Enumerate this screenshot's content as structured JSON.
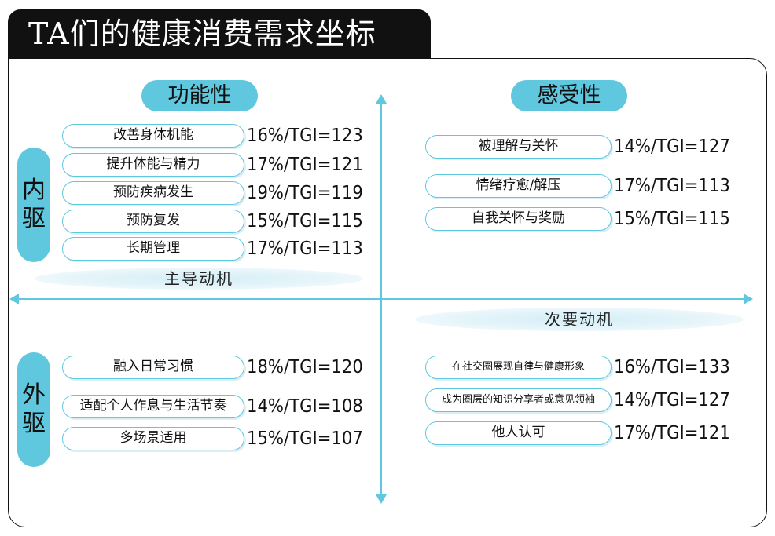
{
  "title": "TA们的健康消费需求坐标",
  "quadrants": {
    "functional": "功能性",
    "emotional": "感受性"
  },
  "side_labels": {
    "internal": [
      "内",
      "驱"
    ],
    "external": [
      "外",
      "驱"
    ]
  },
  "motives": {
    "primary": "主导动机",
    "secondary": "次要动机"
  },
  "top_left_items": [
    {
      "label": "改善身体机能",
      "stat": "16%/TGI=123"
    },
    {
      "label": "提升体能与精力",
      "stat": "17%/TGI=121"
    },
    {
      "label": "预防疾病发生",
      "stat": "19%/TGI=119"
    },
    {
      "label": "预防复发",
      "stat": "15%/TGI=115"
    },
    {
      "label": "长期管理",
      "stat": "17%/TGI=113"
    }
  ],
  "top_right_items": [
    {
      "label": "被理解与关怀",
      "stat": "14%/TGI=127"
    },
    {
      "label": "情绪疗愈/解压",
      "stat": "17%/TGI=113"
    },
    {
      "label": "自我关怀与奖励",
      "stat": "15%/TGI=115"
    }
  ],
  "bottom_left_items": [
    {
      "label": "融入日常习惯",
      "stat": "18%/TGI=120"
    },
    {
      "label": "适配个人作息与生活节奏",
      "stat": "14%/TGI=108"
    },
    {
      "label": "多场景适用",
      "stat": "15%/TGI=107"
    }
  ],
  "bottom_right_items": [
    {
      "label": "在社交圈展现自律与健康形象",
      "stat": "16%/TGI=133"
    },
    {
      "label": "成为圈层的知识分享者或意见领袖",
      "stat": "14%/TGI=127"
    },
    {
      "label": "他人认可",
      "stat": "17%/TGI=121"
    }
  ],
  "colors": {
    "accent": "#5fc7de",
    "title_bg": "#111111",
    "motive_bg": "#d4eef6"
  }
}
